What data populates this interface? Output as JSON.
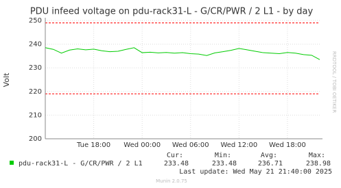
{
  "chart_data": {
    "type": "line",
    "title": "PDU infeed voltage on pdu-rack31-L - G/CR/PWR / 2 L1 - by day",
    "y_label": "Volt",
    "side_text": "RRDTOOL / TOBI OETIKER",
    "categories": [
      null,
      null,
      null,
      null,
      null,
      null,
      "Tue 18:00",
      null,
      null,
      null,
      null,
      null,
      "Wed 00:00",
      null,
      null,
      null,
      null,
      null,
      "Wed 06:00",
      null,
      null,
      null,
      null,
      null,
      "Wed 12:00",
      null,
      null,
      null,
      null,
      null,
      "Wed 18:00",
      null,
      null,
      null,
      null
    ],
    "series": [
      {
        "name": "pdu-rack31-L - G/CR/PWR / 2 L1",
        "color": "#00cc00",
        "values": [
          238.5,
          237.8,
          236.2,
          237.5,
          238.0,
          237.6,
          237.9,
          237.2,
          236.8,
          237.0,
          237.8,
          238.5,
          236.4,
          236.6,
          236.3,
          236.5,
          236.2,
          236.4,
          236.0,
          235.8,
          235.2,
          236.3,
          236.8,
          237.4,
          238.2,
          237.6,
          237.0,
          236.4,
          236.2,
          236.0,
          236.5,
          236.2,
          235.6,
          235.3,
          233.48
        ]
      }
    ],
    "ylim": [
      200,
      250
    ],
    "yticks": [
      200,
      210,
      220,
      230,
      240,
      250
    ],
    "grid": true,
    "hlines": [
      {
        "value": 249,
        "color": "#ff0000"
      },
      {
        "value": 219,
        "color": "#ff0000"
      }
    ],
    "legend": {
      "headers": [
        "Cur:",
        "Min:",
        "Avg:",
        "Max:"
      ],
      "stats": [
        233.48,
        233.48,
        236.71,
        238.98
      ]
    },
    "last_update": "Last update: Wed May 21 21:40:00 2025",
    "footer": "Munin 2.0.75"
  }
}
